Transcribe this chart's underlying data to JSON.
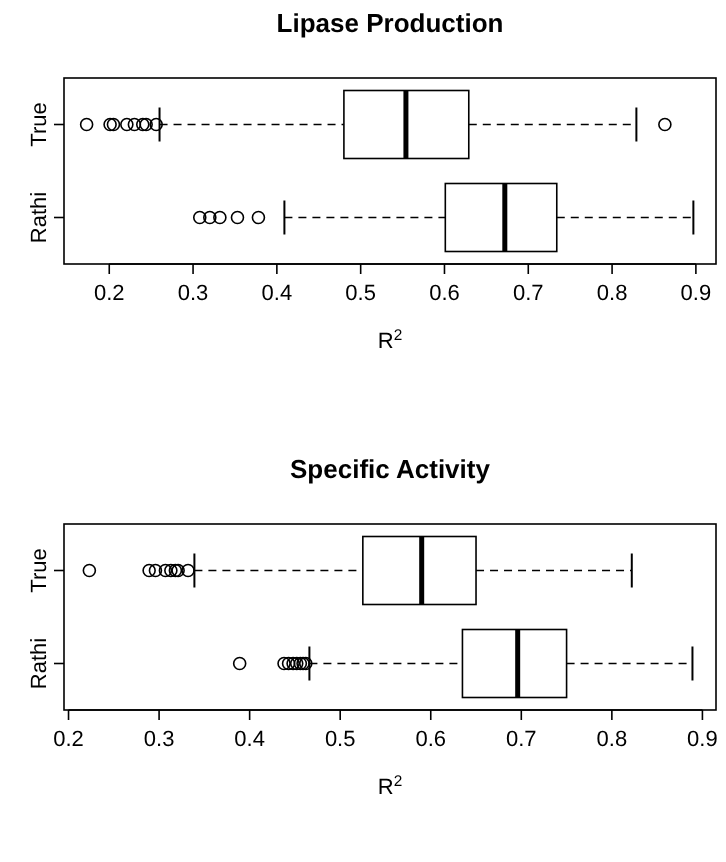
{
  "chart_data": [
    {
      "type": "box",
      "title": "Lipase Production",
      "xlabel": "R$^{2}$",
      "orientation": "horizontal",
      "categories": [
        "True",
        "Rathi"
      ],
      "xlim": [
        0.146,
        0.924
      ],
      "xticks": [
        0.2,
        0.3,
        0.4,
        0.5,
        0.6,
        0.7,
        0.8,
        0.9
      ],
      "grid": false,
      "marker": "circle",
      "line_style": "dashed",
      "boxes": [
        {
          "low": 0.26,
          "q1": 0.48,
          "median": 0.554,
          "q3": 0.629,
          "high": 0.829,
          "outliers": [
            0.173,
            0.201,
            0.205,
            0.221,
            0.23,
            0.24,
            0.244,
            0.256,
            0.863
          ]
        },
        {
          "low": 0.409,
          "q1": 0.601,
          "median": 0.672,
          "q3": 0.734,
          "high": 0.897,
          "outliers": [
            0.308,
            0.32,
            0.332,
            0.353,
            0.378
          ]
        }
      ]
    },
    {
      "type": "box",
      "title": "Specific Activity",
      "xlabel": "R$^{2}$",
      "orientation": "horizontal",
      "categories": [
        "True",
        "Rathi"
      ],
      "xlim": [
        0.195,
        0.915
      ],
      "xticks": [
        0.2,
        0.3,
        0.4,
        0.5,
        0.6,
        0.7,
        0.8,
        0.9
      ],
      "grid": false,
      "marker": "circle",
      "line_style": "dashed",
      "boxes": [
        {
          "low": 0.339,
          "q1": 0.525,
          "median": 0.59,
          "q3": 0.65,
          "high": 0.822,
          "outliers": [
            0.223,
            0.289,
            0.296,
            0.307,
            0.313,
            0.318,
            0.321,
            0.332
          ]
        },
        {
          "low": 0.466,
          "q1": 0.635,
          "median": 0.696,
          "q3": 0.75,
          "high": 0.889,
          "outliers": [
            0.389,
            0.438,
            0.443,
            0.448,
            0.452,
            0.456,
            0.459,
            0.462
          ]
        }
      ]
    }
  ]
}
